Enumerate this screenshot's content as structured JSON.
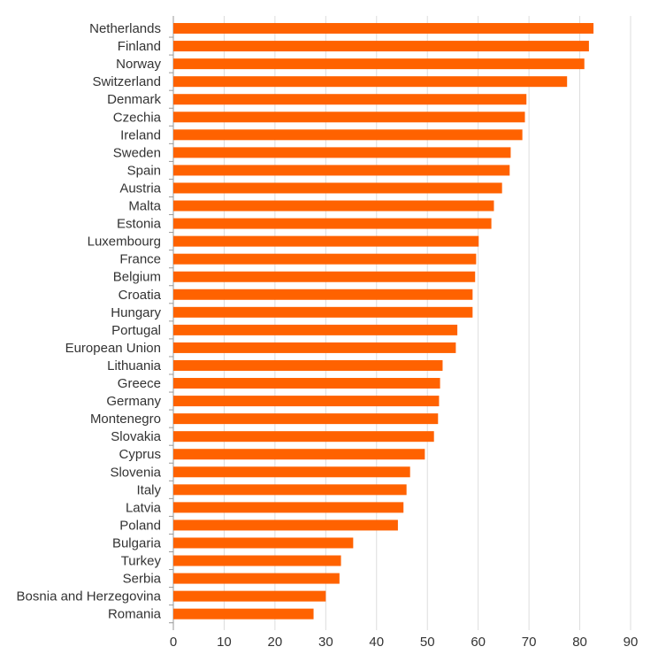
{
  "chart_data": {
    "type": "bar",
    "orientation": "horizontal",
    "color": "#ff6200",
    "xlim": [
      0,
      90
    ],
    "xticks": [
      0,
      10,
      20,
      30,
      40,
      50,
      60,
      70,
      80,
      90
    ],
    "grid": true,
    "categories": [
      "Netherlands",
      "Finland",
      "Norway",
      "Switzerland",
      "Denmark",
      "Czechia",
      "Ireland",
      "Sweden",
      "Spain",
      "Austria",
      "Malta",
      "Estonia",
      "Luxembourg",
      "France",
      "Belgium",
      "Croatia",
      "Hungary",
      "Portugal",
      "European Union",
      "Lithuania",
      "Greece",
      "Germany",
      "Montenegro",
      "Slovakia",
      "Cyprus",
      "Slovenia",
      "Italy",
      "Latvia",
      "Poland",
      "Bulgaria",
      "Turkey",
      "Serbia",
      "Bosnia and Herzegovina",
      "Romania"
    ],
    "values": [
      82.7,
      81.8,
      80.9,
      77.5,
      69.5,
      69.2,
      68.7,
      66.4,
      66.2,
      64.7,
      63.1,
      62.6,
      60.1,
      59.6,
      59.4,
      58.9,
      58.9,
      55.9,
      55.6,
      53.0,
      52.5,
      52.3,
      52.1,
      51.3,
      49.5,
      46.6,
      45.9,
      45.3,
      44.2,
      35.4,
      33.0,
      32.7,
      30.0,
      27.6
    ]
  }
}
